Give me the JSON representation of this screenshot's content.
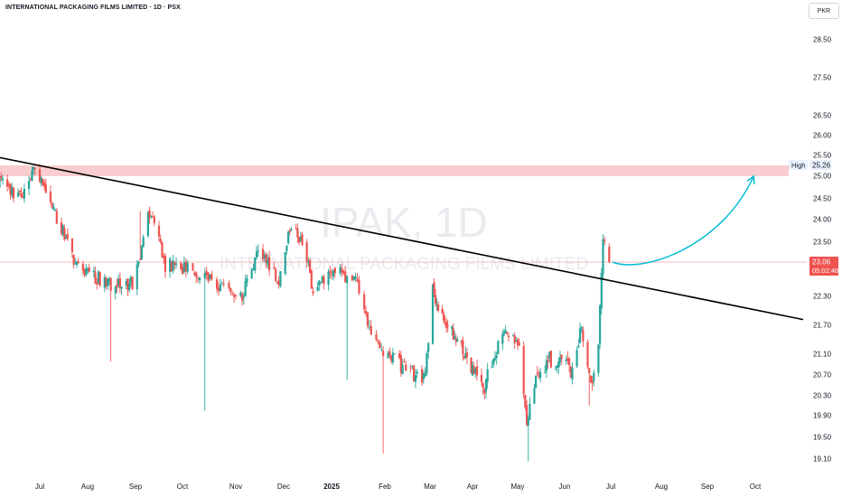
{
  "title": "INTERNATIONAL PACKAGING FILMS LIMITED · 1D · PSX",
  "currency": "PKR",
  "watermark": {
    "symbol": "IPAK, 1D",
    "name": "INTERNATIONAL PACKAGING FILMS LIMITED"
  },
  "colors": {
    "up": "#26a69a",
    "down": "#ef5350",
    "trendline": "#000000",
    "arrow": "#00bcd4",
    "zone": "#f8c4c8",
    "price_line": "#f4a6a6"
  },
  "price_badge": {
    "price": "23.06",
    "countdown": "05:02:46"
  },
  "high_label": {
    "text": "High",
    "value": "25.26"
  },
  "chart_data": {
    "type": "candlestick",
    "y_ticks": [
      28.5,
      27.5,
      26.5,
      26.0,
      25.5,
      25.0,
      24.5,
      24.0,
      23.5,
      22.3,
      21.7,
      21.1,
      20.7,
      20.3,
      19.9,
      19.5,
      19.1
    ],
    "x_labels": [
      {
        "label": "Jul",
        "date": "2024-07-01",
        "bold": false
      },
      {
        "label": "Aug",
        "date": "2024-08-01",
        "bold": false
      },
      {
        "label": "Sep",
        "date": "2024-09-01",
        "bold": false
      },
      {
        "label": "Oct",
        "date": "2024-10-01",
        "bold": false
      },
      {
        "label": "Nov",
        "date": "2024-11-01",
        "bold": false
      },
      {
        "label": "Dec",
        "date": "2024-12-01",
        "bold": false
      },
      {
        "label": "2025",
        "date": "2025-01-01",
        "bold": true
      },
      {
        "label": "Feb",
        "date": "2025-02-01",
        "bold": false
      },
      {
        "label": "Mar",
        "date": "2025-03-01",
        "bold": false
      },
      {
        "label": "Apr",
        "date": "2025-04-01",
        "bold": false
      },
      {
        "label": "May",
        "date": "2025-05-01",
        "bold": false
      },
      {
        "label": "Jun",
        "date": "2025-06-01",
        "bold": false
      },
      {
        "label": "Jul",
        "date": "2025-07-01",
        "bold": false
      },
      {
        "label": "Aug",
        "date": "2025-08-01",
        "bold": false
      },
      {
        "label": "Sep",
        "date": "2025-09-01",
        "bold": false
      },
      {
        "label": "Oct",
        "date": "2025-10-01",
        "bold": false
      }
    ],
    "resistance_zone": [
      25.0,
      25.26
    ],
    "current_price": 23.06,
    "trendline": [
      {
        "date": "2024-06-01",
        "price": 25.48
      },
      {
        "date": "2025-10-31",
        "price": 21.82
      }
    ],
    "projection_arrow": [
      {
        "date": "2025-07-02",
        "price": 23.06
      },
      {
        "date": "2025-07-21",
        "price": 22.8
      },
      {
        "date": "2025-09-10",
        "price": 23.4
      },
      {
        "date": "2025-09-30",
        "price": 25.0
      }
    ],
    "anchors": [
      {
        "date": "2024-06-03",
        "price": 24.9
      },
      {
        "date": "2024-06-20",
        "price": 24.5
      },
      {
        "date": "2024-06-28",
        "price": 25.26
      },
      {
        "date": "2024-07-10",
        "price": 24.2
      },
      {
        "date": "2024-07-25",
        "price": 23.0
      },
      {
        "date": "2024-08-15",
        "price": 22.55
      },
      {
        "date": "2024-08-30",
        "price": 22.6
      },
      {
        "date": "2024-09-05",
        "price": 23.3
      },
      {
        "date": "2024-09-09",
        "price": 24.3
      },
      {
        "date": "2024-09-20",
        "price": 23.0
      },
      {
        "date": "2024-10-10",
        "price": 22.85
      },
      {
        "date": "2024-10-25",
        "price": 22.5
      },
      {
        "date": "2024-11-05",
        "price": 22.3
      },
      {
        "date": "2024-11-15",
        "price": 23.3
      },
      {
        "date": "2024-11-28",
        "price": 22.7
      },
      {
        "date": "2024-12-05",
        "price": 23.8
      },
      {
        "date": "2024-12-13",
        "price": 23.6
      },
      {
        "date": "2024-12-20",
        "price": 22.4
      },
      {
        "date": "2025-01-03",
        "price": 22.9
      },
      {
        "date": "2025-01-15",
        "price": 22.6
      },
      {
        "date": "2025-01-24",
        "price": 21.4
      },
      {
        "date": "2025-02-10",
        "price": 20.9
      },
      {
        "date": "2025-02-26",
        "price": 20.6
      },
      {
        "date": "2025-03-03",
        "price": 22.5
      },
      {
        "date": "2025-03-10",
        "price": 21.8
      },
      {
        "date": "2025-03-25",
        "price": 21.2
      },
      {
        "date": "2025-04-08",
        "price": 20.4
      },
      {
        "date": "2025-04-22",
        "price": 21.6
      },
      {
        "date": "2025-05-02",
        "price": 21.2
      },
      {
        "date": "2025-05-07",
        "price": 19.8
      },
      {
        "date": "2025-05-14",
        "price": 20.7
      },
      {
        "date": "2025-05-22",
        "price": 21.0
      },
      {
        "date": "2025-06-05",
        "price": 20.8
      },
      {
        "date": "2025-06-12",
        "price": 21.6
      },
      {
        "date": "2025-06-18",
        "price": 20.5
      },
      {
        "date": "2025-06-23",
        "price": 21.3
      },
      {
        "date": "2025-06-26",
        "price": 23.5
      },
      {
        "date": "2025-06-30",
        "price": 23.06
      }
    ]
  }
}
